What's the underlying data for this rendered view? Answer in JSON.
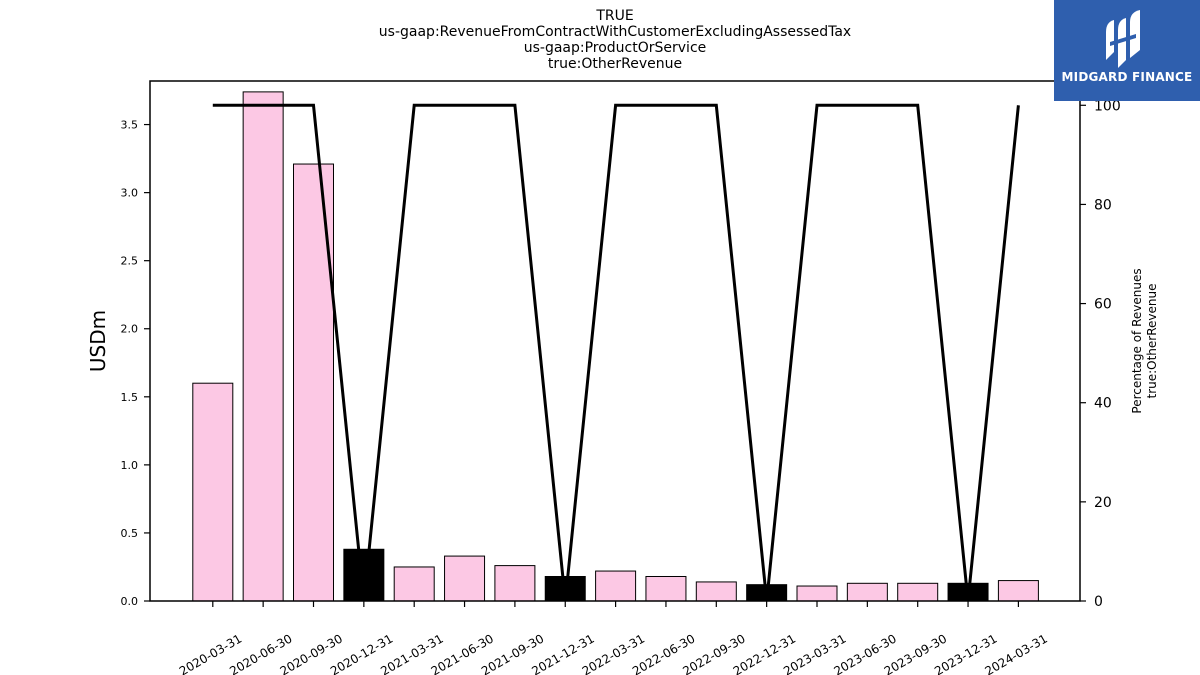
{
  "chart_data": {
    "type": "bar",
    "title_lines": [
      "TRUE",
      "us-gaap:RevenueFromContractWithCustomerExcludingAssessedTax",
      "us-gaap:ProductOrService",
      "true:OtherRevenue"
    ],
    "ylabel": "USDm",
    "y2label_lines": [
      "Percentage of Revenues",
      "true:OtherRevenue"
    ],
    "categories": [
      "2020-03-31",
      "2020-06-30",
      "2020-09-30",
      "2020-12-31",
      "2021-03-31",
      "2021-06-30",
      "2021-09-30",
      "2021-12-31",
      "2022-03-31",
      "2022-06-30",
      "2022-09-30",
      "2022-12-31",
      "2023-03-31",
      "2023-06-30",
      "2023-09-30",
      "2023-12-31",
      "2024-03-31"
    ],
    "values": [
      1.6,
      3.74,
      3.21,
      0.38,
      0.25,
      0.33,
      0.26,
      0.18,
      0.22,
      0.18,
      0.14,
      0.12,
      0.11,
      0.13,
      0.13,
      0.13,
      0.15
    ],
    "percentage": [
      100,
      100,
      100,
      0,
      100,
      100,
      100,
      0,
      100,
      100,
      100,
      0,
      100,
      100,
      100,
      0,
      100
    ],
    "highlight_categories": [
      "2020-12-31",
      "2021-12-31",
      "2022-12-31",
      "2023-12-31"
    ],
    "ylim": [
      0,
      3.82
    ],
    "y2lim": [
      0,
      104.9
    ],
    "yticks": [
      "0.0",
      "0.5",
      "1.0",
      "1.5",
      "2.0",
      "2.5",
      "3.0",
      "3.5"
    ],
    "y2ticks": [
      "0",
      "20",
      "40",
      "60",
      "80",
      "100"
    ],
    "colors": {
      "bar": "#fcc8e4",
      "highlight_bar": "#000000",
      "line": "#000000",
      "edge": "#000000"
    }
  },
  "logo": {
    "text": "MIDGARD FINANCE",
    "bg": "#2f5fae"
  }
}
